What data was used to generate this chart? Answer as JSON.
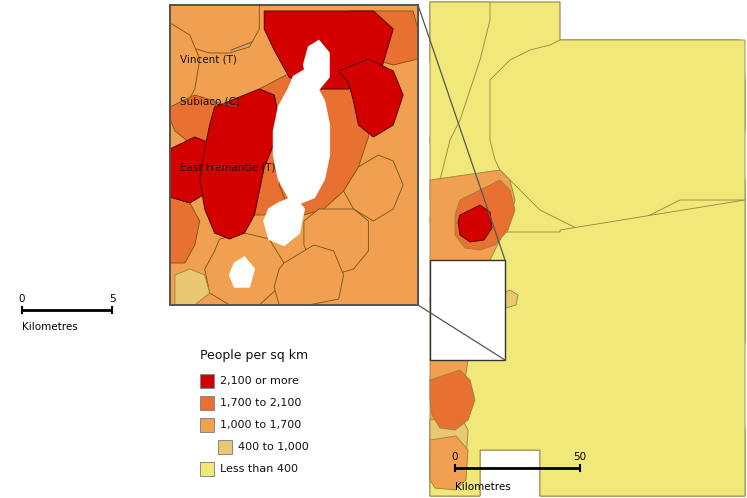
{
  "bg_color": "#ffffff",
  "colors": {
    "high": "#d40000",
    "medium_high": "#e87030",
    "medium": "#f0a050",
    "low_medium": "#e8c870",
    "low": "#f0e878",
    "water": "#ffffff",
    "border": "#7a5010"
  },
  "legend_title": "People per sq km",
  "legend_items": [
    {
      "label": "2,100 or more",
      "color": "#d40000"
    },
    {
      "label": "1,700 to 2,100",
      "color": "#e87030"
    },
    {
      "label": "1,000 to 1,700",
      "color": "#f0a050"
    },
    {
      "label": "400 to 1,000",
      "color": "#e8c870"
    },
    {
      "label": "Less than 400",
      "color": "#f0e878"
    }
  ]
}
